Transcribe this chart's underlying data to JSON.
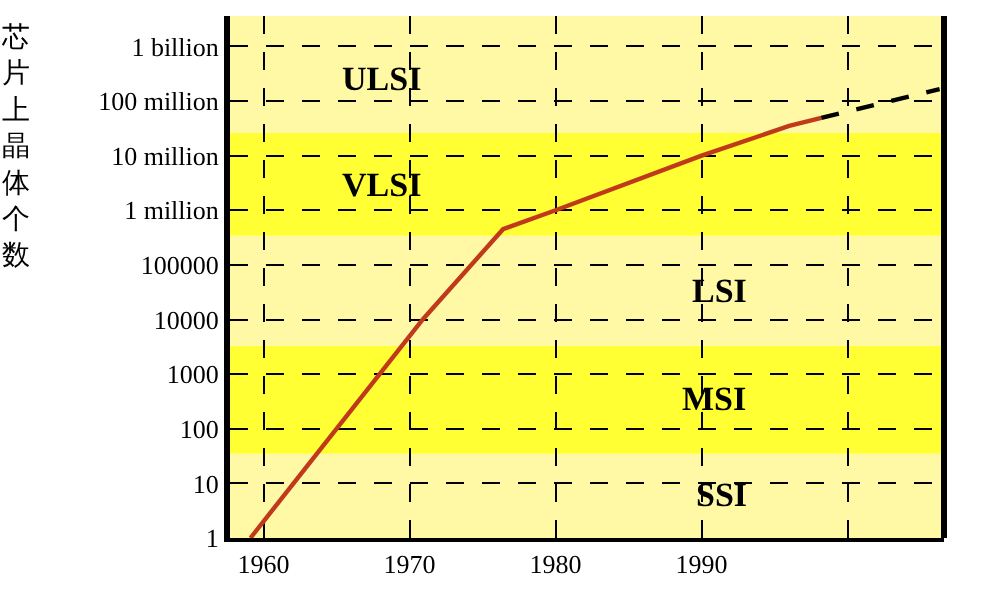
{
  "chart_data": {
    "type": "line",
    "ylabel": "芯片上晶体个数",
    "series": [
      {
        "color": "#c0391b",
        "line_style": "solid",
        "x": [
          1959.1,
          1970.9,
          1976.4,
          1980,
          1990,
          1996,
          1998.2
        ],
        "values": [
          1,
          10000,
          450000,
          1000000,
          10000000,
          35000000,
          49000000
        ]
      },
      {
        "color": "#000000",
        "line_style": "dashed",
        "x": [
          1998.2,
          2006.3
        ],
        "values": [
          49000000,
          165000000
        ]
      }
    ],
    "log": "y",
    "grid": true,
    "marker": "none",
    "xlim": [
      1957.7,
      2006.6
    ],
    "xticks": [
      1960,
      1970,
      1980,
      1990,
      {
        "value": 2000,
        "label": null
      }
    ],
    "ylim": [
      1,
      3600000000
    ],
    "yticks": [
      1,
      10,
      100,
      1000,
      10000,
      100000,
      {
        "value": 1000000,
        "label": "1 million"
      },
      {
        "value": 10000000,
        "label": "10 million"
      },
      {
        "value": 100000000,
        "label": "100 million"
      },
      {
        "value": 1000000000,
        "label": "1 billion"
      }
    ],
    "bands": [
      {
        "axis": "y",
        "from": 1,
        "to": 35,
        "label": "SSI",
        "color": "#fff9a6"
      },
      {
        "axis": "y",
        "from": 35,
        "to": 3300,
        "label": "MSI",
        "color": "#ffff33"
      },
      {
        "axis": "y",
        "from": 3300,
        "to": 340000,
        "label": "LSI",
        "color": "#fff9a6"
      },
      {
        "axis": "y",
        "from": 340000,
        "to": 26000000,
        "label": "VLSI",
        "color": "#ffff33"
      },
      {
        "axis": "y",
        "from": 26000000,
        "to": 3600000000,
        "label": "ULSI",
        "color": "#fff9a6"
      }
    ]
  }
}
